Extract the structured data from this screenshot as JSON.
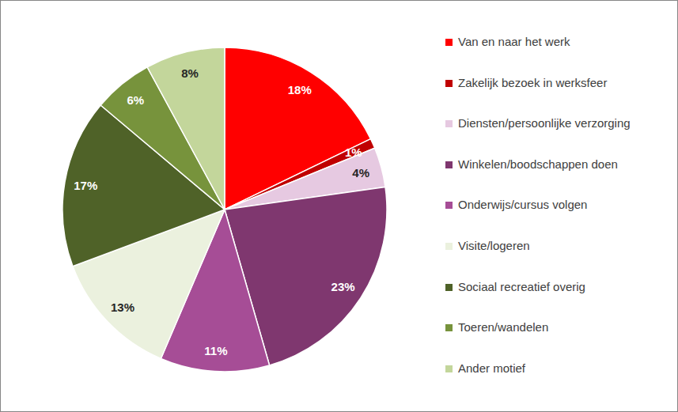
{
  "chart_data": {
    "type": "pie",
    "categories": [
      "Van en naar het werk",
      "Zakelijk bezoek in werksfeer",
      "Diensten/persoonlijke verzorging",
      "Winkelen/boodschappen doen",
      "Onderwijs/cursus volgen",
      "Visite/logeren",
      "Sociaal recreatief overig",
      "Toeren/wandelen",
      "Ander motief"
    ],
    "values": [
      18,
      1,
      4,
      23,
      11,
      13,
      17,
      6,
      8
    ],
    "value_labels": [
      "18%",
      "1%",
      "4%",
      "23%",
      "11%",
      "13%",
      "17%",
      "6%",
      "8%"
    ],
    "colors": [
      "#ff0000",
      "#c00000",
      "#e6c9e1",
      "#7f376f",
      "#a64d96",
      "#ebf1de",
      "#4f6228",
      "#77933c",
      "#c3d69b"
    ],
    "data_labels": true,
    "legend": "right"
  }
}
